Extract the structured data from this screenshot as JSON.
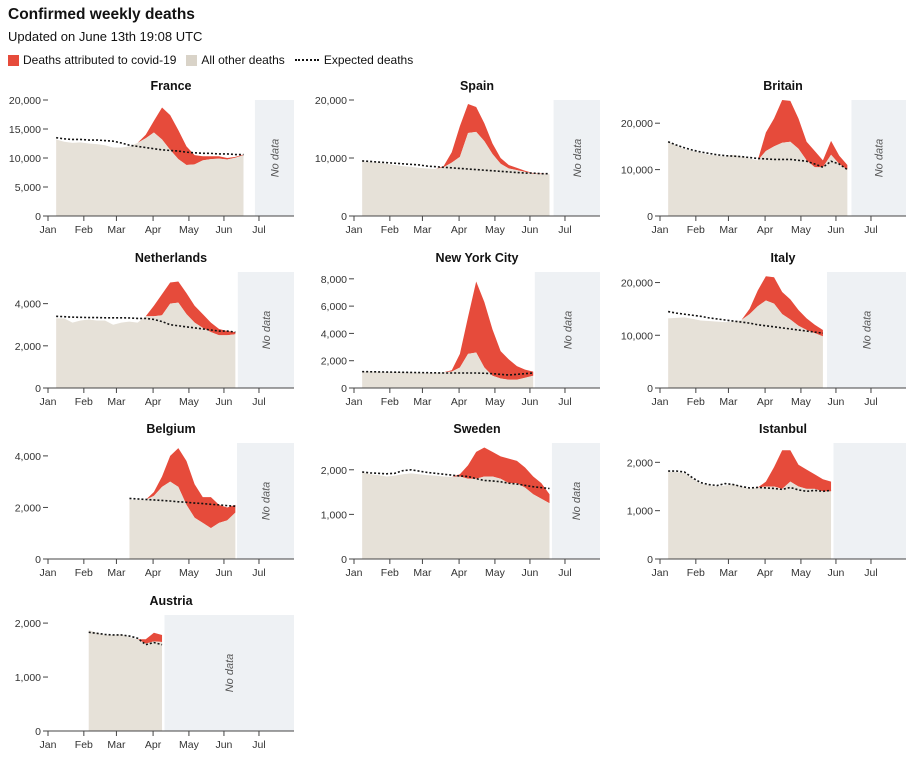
{
  "header": {
    "title": "Confirmed weekly deaths",
    "subtitle": "Updated on June 13th 19:08 UTC"
  },
  "legend": {
    "covid_label": "Deaths attributed to covid-19",
    "other_label": "All other deaths",
    "expected_label": "Expected deaths"
  },
  "colors": {
    "covid": "#e64b3b",
    "other": "#e6e1d8",
    "nodata": "#eef1f4",
    "expected": "#121212",
    "axis": "#444444"
  },
  "no_data_label": "No data",
  "months": [
    "Jan",
    "Feb",
    "Mar",
    "Apr",
    "May",
    "Jun",
    "Jul"
  ],
  "chart_data": [
    {
      "type": "area",
      "title": "France",
      "ylim": [
        0,
        20000
      ],
      "yticks": [
        0,
        5000,
        10000,
        15000,
        20000
      ],
      "ytick_labels": [
        "0",
        "5,000",
        "10,000",
        "15,000",
        "20,000"
      ],
      "no_data_from_week": 25.4,
      "weeks": [
        1,
        2,
        3,
        4,
        5,
        6,
        7,
        8,
        9,
        10,
        11,
        12,
        13,
        14,
        15,
        16,
        17,
        18,
        19,
        20,
        21,
        22,
        23,
        24
      ],
      "total": [
        13200,
        12800,
        12600,
        12700,
        12500,
        12400,
        12200,
        11800,
        11800,
        12000,
        12600,
        14000,
        16400,
        18700,
        17400,
        14800,
        12000,
        10500,
        10300,
        10300,
        10300,
        10000,
        10200,
        10600
      ],
      "covid": [
        0,
        0,
        0,
        0,
        0,
        0,
        0,
        0,
        0,
        0,
        0,
        600,
        2000,
        5500,
        6000,
        5000,
        3200,
        1600,
        700,
        500,
        400,
        250,
        150,
        100
      ],
      "expected": [
        13500,
        13300,
        13200,
        13200,
        13100,
        13100,
        13000,
        12900,
        12600,
        12200,
        12000,
        11800,
        11600,
        11400,
        11300,
        11200,
        11000,
        10900,
        10800,
        10800,
        10700,
        10700,
        10600,
        10600
      ]
    },
    {
      "type": "area",
      "title": "Spain",
      "ylim": [
        0,
        20000
      ],
      "yticks": [
        0,
        10000,
        20000
      ],
      "ytick_labels": [
        "0",
        "10,000",
        "20,000"
      ],
      "no_data_from_week": 24.5,
      "weeks": [
        1,
        2,
        3,
        4,
        5,
        6,
        7,
        8,
        9,
        10,
        11,
        12,
        13,
        14,
        15,
        16,
        17,
        18,
        19,
        20,
        21,
        22,
        23,
        24
      ],
      "total": [
        9400,
        9300,
        9200,
        9000,
        8800,
        8600,
        8500,
        8300,
        8200,
        8100,
        8600,
        11000,
        15500,
        19300,
        18800,
        16000,
        12500,
        10000,
        8800,
        8300,
        7800,
        7400,
        7300,
        7200
      ],
      "covid": [
        0,
        0,
        0,
        0,
        0,
        0,
        0,
        0,
        0,
        0,
        200,
        1800,
        5300,
        5000,
        4300,
        3100,
        1800,
        1000,
        600,
        400,
        200,
        100,
        50,
        0
      ],
      "expected": [
        9500,
        9400,
        9300,
        9200,
        9100,
        9000,
        8900,
        8800,
        8600,
        8500,
        8400,
        8300,
        8200,
        8100,
        8000,
        7900,
        7800,
        7700,
        7600,
        7500,
        7400,
        7400,
        7300,
        7300
      ]
    },
    {
      "type": "area",
      "title": "Britain",
      "ylim": [
        0,
        25000
      ],
      "yticks": [
        0,
        10000,
        20000
      ],
      "ytick_labels": [
        "0",
        "10,000",
        "20,000"
      ],
      "no_data_from_week": 23.5,
      "weeks": [
        1,
        2,
        3,
        4,
        5,
        6,
        7,
        8,
        9,
        10,
        11,
        12,
        13,
        14,
        15,
        16,
        17,
        18,
        19,
        20,
        21,
        22,
        23
      ],
      "total": [
        16000,
        15200,
        14400,
        14000,
        13600,
        13200,
        13000,
        12800,
        13200,
        12800,
        12400,
        12000,
        18000,
        21000,
        25000,
        24800,
        21000,
        16000,
        14000,
        12000,
        16200,
        13000,
        11000
      ],
      "covid": [
        0,
        0,
        0,
        0,
        0,
        0,
        0,
        0,
        0,
        0,
        0,
        0,
        4000,
        6000,
        9200,
        8800,
        6500,
        4000,
        3500,
        1500,
        3000,
        1800,
        1000
      ],
      "expected": [
        16000,
        15300,
        14700,
        14200,
        13800,
        13500,
        13200,
        13000,
        12900,
        12800,
        12600,
        12400,
        12300,
        12200,
        12200,
        12200,
        12000,
        11800,
        11200,
        10500,
        11800,
        11200,
        10000
      ]
    },
    {
      "type": "area",
      "title": "Netherlands",
      "ylim": [
        0,
        5500
      ],
      "yticks": [
        0,
        2000,
        4000
      ],
      "ytick_labels": [
        "0",
        "2,000",
        "4,000"
      ],
      "no_data_from_week": 23.3,
      "weeks": [
        1,
        2,
        3,
        4,
        5,
        6,
        7,
        8,
        9,
        10,
        11,
        12,
        13,
        14,
        15,
        16,
        17,
        18,
        19,
        20,
        21,
        22,
        23
      ],
      "total": [
        3300,
        3300,
        3100,
        3200,
        3250,
        3200,
        3200,
        3000,
        3100,
        3150,
        3100,
        3400,
        3900,
        4450,
        5000,
        5050,
        4500,
        3900,
        3500,
        3100,
        2800,
        2700,
        2650
      ],
      "covid": [
        0,
        0,
        0,
        0,
        0,
        0,
        0,
        0,
        0,
        0,
        0,
        0,
        500,
        1000,
        1000,
        1000,
        1000,
        800,
        650,
        450,
        300,
        200,
        100
      ],
      "expected": [
        3400,
        3380,
        3360,
        3350,
        3340,
        3340,
        3330,
        3330,
        3330,
        3320,
        3300,
        3300,
        3250,
        3150,
        3000,
        2950,
        2900,
        2850,
        2800,
        2750,
        2700,
        2700,
        2650
      ]
    },
    {
      "type": "area",
      "title": "New York City",
      "ylim": [
        0,
        8500
      ],
      "yticks": [
        0,
        2000,
        4000,
        6000,
        8000
      ],
      "ytick_labels": [
        "0",
        "2,000",
        "4,000",
        "6,000",
        "8,000"
      ],
      "no_data_from_week": 22.2,
      "weeks": [
        1,
        2,
        3,
        4,
        5,
        6,
        7,
        8,
        9,
        10,
        11,
        12,
        13,
        14,
        15,
        16,
        17,
        18,
        19,
        20,
        21,
        22
      ],
      "total": [
        1200,
        1200,
        1180,
        1150,
        1160,
        1150,
        1140,
        1120,
        1100,
        1100,
        1150,
        1300,
        2500,
        5200,
        7800,
        6300,
        4300,
        2700,
        2100,
        1600,
        1350,
        1200
      ],
      "covid": [
        0,
        0,
        0,
        0,
        0,
        0,
        0,
        0,
        0,
        0,
        0,
        100,
        1000,
        2700,
        5200,
        4800,
        3400,
        2000,
        1500,
        1000,
        600,
        300
      ],
      "expected": [
        1200,
        1190,
        1180,
        1170,
        1160,
        1150,
        1140,
        1130,
        1120,
        1110,
        1100,
        1100,
        1100,
        1100,
        1100,
        1080,
        1050,
        1000,
        950,
        1000,
        1050,
        1100
      ]
    },
    {
      "type": "area",
      "title": "Italy",
      "ylim": [
        0,
        22000
      ],
      "yticks": [
        0,
        10000,
        20000
      ],
      "ytick_labels": [
        "0",
        "10,000",
        "20,000"
      ],
      "no_data_from_week": 20.5,
      "weeks": [
        1,
        2,
        3,
        4,
        5,
        6,
        7,
        8,
        9,
        10,
        11,
        12,
        13,
        14,
        15,
        16,
        17,
        18,
        19,
        20
      ],
      "total": [
        13200,
        13300,
        13400,
        13100,
        12800,
        12700,
        12600,
        12500,
        12600,
        12900,
        15000,
        18500,
        21200,
        21000,
        18200,
        16800,
        14800,
        13200,
        12000,
        11000
      ],
      "covid": [
        0,
        0,
        0,
        0,
        0,
        0,
        0,
        0,
        0,
        0,
        1000,
        3000,
        4600,
        5000,
        4200,
        3800,
        3000,
        2200,
        1600,
        1200
      ],
      "expected": [
        14500,
        14200,
        14000,
        13800,
        13600,
        13300,
        13100,
        12900,
        12700,
        12500,
        12300,
        12000,
        11800,
        11600,
        11400,
        11200,
        11000,
        10800,
        10600,
        10400
      ]
    },
    {
      "type": "area",
      "title": "Belgium",
      "ylim": [
        0,
        4500
      ],
      "yticks": [
        0,
        2000,
        4000
      ],
      "ytick_labels": [
        "0",
        "2,000",
        "4,000"
      ],
      "no_data_from_week": 23.2,
      "weeks": [
        10,
        11,
        12,
        13,
        14,
        15,
        16,
        17,
        18,
        19,
        20,
        21,
        22,
        23
      ],
      "total": [
        2300,
        2300,
        2300,
        2600,
        3200,
        4000,
        4300,
        3800,
        2900,
        2400,
        2400,
        2100,
        2000,
        2100
      ],
      "covid": [
        0,
        0,
        0,
        150,
        400,
        1000,
        1500,
        1700,
        1300,
        1000,
        1200,
        700,
        500,
        300
      ],
      "expected": [
        2350,
        2330,
        2310,
        2290,
        2270,
        2250,
        2220,
        2200,
        2170,
        2150,
        2120,
        2100,
        2070,
        2050
      ]
    },
    {
      "type": "area",
      "title": "Sweden",
      "ylim": [
        0,
        2600
      ],
      "yticks": [
        0,
        1000,
        2000
      ],
      "ytick_labels": [
        "0",
        "1,000",
        "2,000"
      ],
      "no_data_from_week": 24.3,
      "weeks": [
        1,
        2,
        3,
        4,
        5,
        6,
        7,
        8,
        9,
        10,
        11,
        12,
        13,
        14,
        15,
        16,
        17,
        18,
        19,
        20,
        21,
        22,
        23,
        24
      ],
      "total": [
        1950,
        1900,
        1880,
        1850,
        1870,
        1900,
        1920,
        1900,
        1880,
        1870,
        1850,
        1840,
        1900,
        2100,
        2400,
        2500,
        2400,
        2300,
        2250,
        2200,
        2050,
        1850,
        1700,
        1450
      ],
      "covid": [
        0,
        0,
        0,
        0,
        0,
        0,
        0,
        0,
        0,
        0,
        0,
        0,
        50,
        300,
        600,
        650,
        550,
        500,
        550,
        500,
        450,
        400,
        350,
        200
      ],
      "expected": [
        1950,
        1930,
        1920,
        1910,
        1920,
        1980,
        2000,
        1970,
        1940,
        1920,
        1900,
        1880,
        1860,
        1850,
        1800,
        1760,
        1750,
        1730,
        1700,
        1680,
        1650,
        1620,
        1600,
        1580
      ]
    },
    {
      "type": "area",
      "title": "Istanbul",
      "ylim": [
        0,
        2400
      ],
      "yticks": [
        0,
        1000,
        2000
      ],
      "ytick_labels": [
        "0",
        "1,000",
        "2,000"
      ],
      "no_data_from_week": 21.3,
      "weeks": [
        1,
        2,
        3,
        4,
        5,
        6,
        7,
        8,
        9,
        10,
        11,
        12,
        13,
        14,
        15,
        16,
        17,
        18,
        19,
        20,
        21
      ],
      "total": [
        1800,
        1800,
        1780,
        1660,
        1560,
        1520,
        1500,
        1520,
        1550,
        1500,
        1450,
        1480,
        1600,
        1900,
        2250,
        2250,
        1950,
        1850,
        1750,
        1650,
        1600
      ],
      "covid": [
        0,
        0,
        0,
        0,
        0,
        0,
        0,
        0,
        0,
        0,
        0,
        0,
        100,
        400,
        800,
        650,
        450,
        400,
        300,
        250,
        200
      ],
      "expected": [
        1820,
        1820,
        1800,
        1680,
        1580,
        1540,
        1520,
        1560,
        1540,
        1500,
        1470,
        1480,
        1470,
        1460,
        1440,
        1480,
        1430,
        1400,
        1420,
        1400,
        1420
      ]
    },
    {
      "type": "area",
      "title": "Austria",
      "ylim": [
        0,
        2150
      ],
      "yticks": [
        0,
        1000,
        2000
      ],
      "ytick_labels": [
        "0",
        "1,000",
        "2,000"
      ],
      "no_data_from_week": 14.3,
      "weeks": [
        5,
        6,
        7,
        8,
        9,
        10,
        11,
        12,
        13,
        14
      ],
      "total": [
        1870,
        1820,
        1780,
        1780,
        1790,
        1740,
        1700,
        1700,
        1820,
        1780
      ],
      "covid": [
        0,
        0,
        0,
        0,
        0,
        0,
        0,
        80,
        160,
        130
      ],
      "expected": [
        1830,
        1810,
        1790,
        1780,
        1780,
        1760,
        1720,
        1600,
        1640,
        1600
      ]
    }
  ]
}
